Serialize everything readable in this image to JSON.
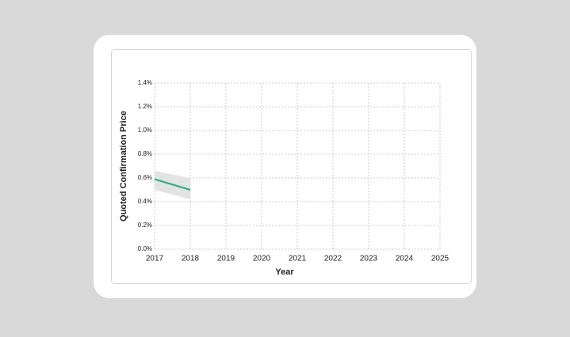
{
  "chart_data": {
    "type": "line",
    "x_label": "Year",
    "y_label": "Quoted Confirmation Price",
    "x": [
      2017,
      2018
    ],
    "values": [
      0.59,
      0.5
    ],
    "lower": [
      0.5,
      0.42
    ],
    "upper": [
      0.66,
      0.6
    ],
    "color": "#22b07d",
    "band_color": "#e3e3e3",
    "xlim": [
      2017,
      2025
    ],
    "xticks": [
      2017,
      2018,
      2019,
      2020,
      2021,
      2022,
      2023,
      2024,
      2025
    ],
    "ylim": [
      0,
      1.4
    ],
    "yticks": [
      {
        "value": 0,
        "label": "0.0%"
      },
      {
        "value": 0.2,
        "label": "0.2%"
      },
      {
        "value": 0.4,
        "label": "0.4%"
      },
      {
        "value": 0.6,
        "label": "0.6%"
      },
      {
        "value": 0.8,
        "label": "0.8%"
      },
      {
        "value": 1.0,
        "label": "1.0%"
      },
      {
        "value": 1.2,
        "label": "1.2%"
      },
      {
        "value": 1.4,
        "label": "1.4%"
      }
    ],
    "grid": true
  }
}
